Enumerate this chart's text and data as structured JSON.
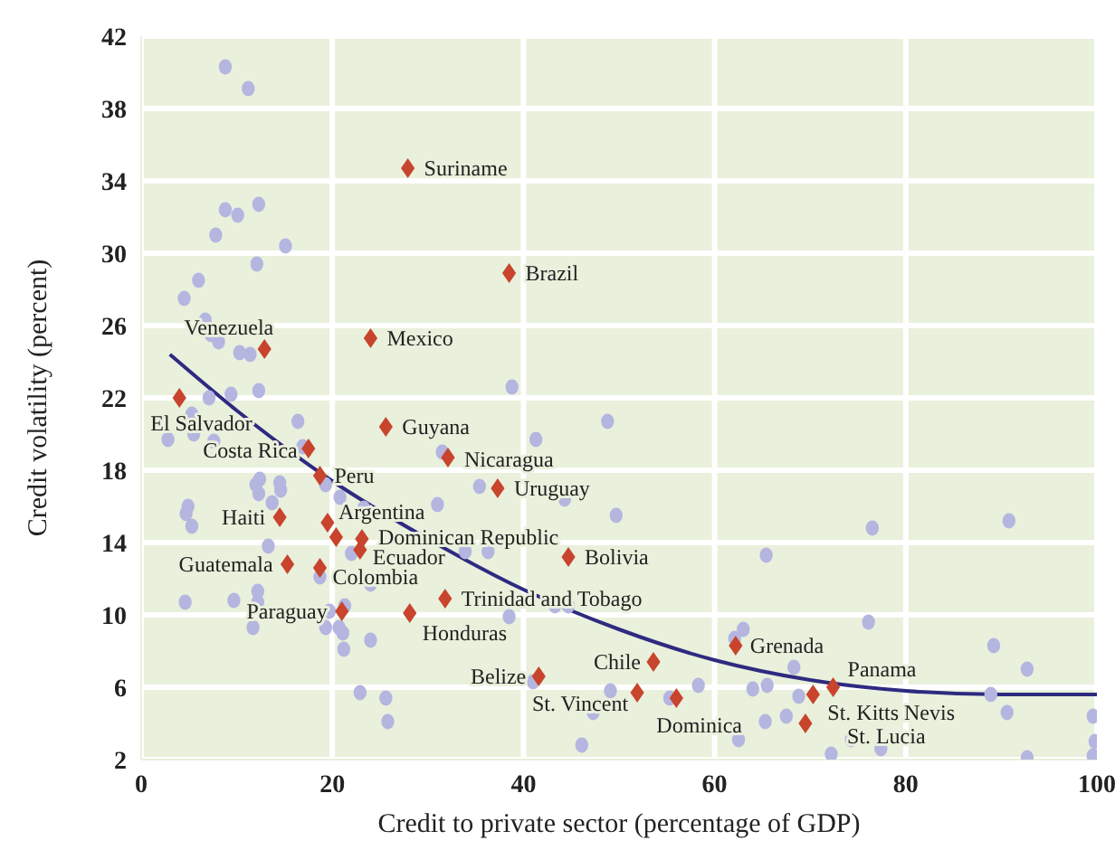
{
  "chart_data": {
    "type": "scatter",
    "xlabel": "Credit to private sector (percentage of GDP)",
    "ylabel": "Credit volatility (percent)",
    "xlim": [
      0,
      100
    ],
    "xticks": [
      0,
      20,
      40,
      60,
      80,
      100
    ],
    "ylim": [
      2,
      42
    ],
    "yticks": [
      2,
      6,
      10,
      14,
      18,
      22,
      26,
      30,
      34,
      38,
      42
    ],
    "grid": true,
    "series": [
      {
        "color": "#b4b6e0",
        "marker": "circle",
        "x": [
          8.8,
          11.2,
          12.3,
          8.8,
          10.1,
          7.8,
          15.1,
          12.1,
          6.0,
          4.5,
          6.7,
          7.3,
          8.1,
          10.3,
          11.4,
          38.8,
          9.4,
          12.3,
          7.1,
          5.3,
          16.4,
          5.5,
          2.8,
          7.6,
          16.9,
          31.5,
          41.3,
          48.8,
          12.4,
          12.0,
          14.5,
          14.6,
          12.3,
          19.3,
          20.8,
          13.7,
          4.9,
          4.7,
          5.3,
          23.3,
          31.0,
          35.4,
          44.3,
          49.7,
          13.3,
          22.0,
          33.9,
          36.3,
          24.0,
          18.7,
          4.6,
          9.7,
          12.2,
          12.2,
          11.7,
          19.7,
          21.3,
          19.3,
          20.7,
          21.1,
          21.2,
          24.0,
          38.5,
          43.3,
          44.7,
          22.9,
          25.6,
          25.8,
          41.0,
          49.1,
          47.3,
          46.1,
          76.5,
          90.8,
          65.4,
          76.1,
          63.0,
          62.1,
          89.2,
          92.7,
          68.3,
          58.3,
          64.0,
          65.5,
          68.8,
          55.3,
          88.9,
          90.6,
          99.6,
          67.5,
          65.3,
          62.5,
          74.3,
          77.4,
          72.2,
          92.7,
          99.8,
          99.6
        ],
        "values": [
          40.3,
          39.1,
          32.7,
          32.4,
          32.1,
          31.0,
          30.4,
          29.4,
          28.5,
          27.5,
          26.3,
          25.5,
          25.1,
          24.5,
          24.4,
          22.6,
          22.2,
          22.4,
          22.0,
          21.1,
          20.7,
          20.0,
          19.7,
          19.6,
          19.3,
          19.0,
          19.7,
          20.7,
          17.5,
          17.2,
          17.3,
          16.9,
          16.7,
          17.2,
          16.5,
          16.2,
          16.0,
          15.6,
          14.9,
          15.9,
          16.1,
          17.1,
          16.4,
          15.5,
          13.8,
          13.4,
          13.5,
          13.5,
          11.7,
          12.1,
          10.7,
          10.8,
          11.3,
          10.7,
          9.3,
          10.2,
          10.5,
          9.3,
          9.3,
          9.0,
          8.1,
          8.6,
          9.9,
          10.5,
          10.5,
          5.7,
          5.4,
          4.1,
          6.3,
          5.8,
          4.6,
          2.8,
          14.8,
          15.2,
          13.3,
          9.6,
          9.2,
          8.7,
          8.3,
          7.0,
          7.1,
          6.1,
          5.9,
          6.1,
          5.5,
          5.4,
          5.6,
          4.6,
          4.4,
          4.4,
          4.1,
          3.1,
          3.1,
          2.6,
          2.3,
          2.1,
          3.0,
          2.2
        ]
      },
      {
        "color": "#c8442c",
        "marker": "diamond",
        "x": [
          27.9,
          38.5,
          24.0,
          12.9,
          4.0,
          25.6,
          17.5,
          32.1,
          18.7,
          37.3,
          19.5,
          14.5,
          23.1,
          22.9,
          15.3,
          18.7,
          44.7,
          31.8,
          21.0,
          28.1,
          41.6,
          53.6,
          62.2,
          51.9,
          56.0,
          72.4,
          70.3,
          69.5,
          20.4
        ],
        "values": [
          34.7,
          28.9,
          25.3,
          24.7,
          22.0,
          20.4,
          19.2,
          18.7,
          17.7,
          17.0,
          15.1,
          15.4,
          14.2,
          13.6,
          12.8,
          12.6,
          13.2,
          10.9,
          10.2,
          10.1,
          6.6,
          7.4,
          8.3,
          5.7,
          5.4,
          6.0,
          5.6,
          4.0,
          14.3
        ]
      },
      {
        "type": "line",
        "color": "#2e2a80",
        "marker": "none",
        "line_style": "solid",
        "x": [
          3,
          10,
          20,
          30,
          40,
          50,
          60,
          70,
          80,
          90,
          100
        ],
        "values": [
          24.4,
          21.3,
          17.4,
          14.2,
          11.4,
          9.2,
          7.5,
          6.4,
          5.8,
          5.6,
          5.6
        ]
      }
    ],
    "annotations": [
      {
        "text": "Suriname",
        "x": 27.9,
        "y": 34.7
      },
      {
        "text": "Brazil",
        "x": 38.5,
        "y": 28.9
      },
      {
        "text": "Mexico",
        "x": 24.0,
        "y": 25.3
      },
      {
        "text": "Venezuela",
        "x": 12.9,
        "y": 24.7
      },
      {
        "text": "El Salvador",
        "x": 4.0,
        "y": 22.0
      },
      {
        "text": "Guyana",
        "x": 25.6,
        "y": 20.4
      },
      {
        "text": "Costa Rica",
        "x": 17.5,
        "y": 19.2
      },
      {
        "text": "Nicaragua",
        "x": 32.1,
        "y": 18.7
      },
      {
        "text": "Peru",
        "x": 18.7,
        "y": 17.7
      },
      {
        "text": "Uruguay",
        "x": 37.3,
        "y": 17.0
      },
      {
        "text": "Argentina",
        "x": 19.5,
        "y": 15.1
      },
      {
        "text": "Haiti",
        "x": 14.5,
        "y": 15.4
      },
      {
        "text": "Dominican Republic",
        "x": 23.1,
        "y": 14.2
      },
      {
        "text": "Ecuador",
        "x": 22.9,
        "y": 13.6
      },
      {
        "text": "Guatemala",
        "x": 15.3,
        "y": 12.8
      },
      {
        "text": "Colombia",
        "x": 18.7,
        "y": 12.6
      },
      {
        "text": "Bolivia",
        "x": 44.7,
        "y": 13.2
      },
      {
        "text": "Trinidad and Tobago",
        "x": 31.8,
        "y": 10.9
      },
      {
        "text": "Paraguay",
        "x": 21.0,
        "y": 10.2
      },
      {
        "text": "Honduras",
        "x": 28.1,
        "y": 10.1
      },
      {
        "text": "Belize",
        "x": 41.6,
        "y": 6.6
      },
      {
        "text": "Chile",
        "x": 53.6,
        "y": 7.4
      },
      {
        "text": "Grenada",
        "x": 62.2,
        "y": 8.3
      },
      {
        "text": "St. Vincent",
        "x": 51.9,
        "y": 5.7
      },
      {
        "text": "Dominica",
        "x": 56.0,
        "y": 5.4
      },
      {
        "text": "Panama",
        "x": 72.4,
        "y": 6.0
      },
      {
        "text": "St. Kitts Nevis",
        "x": 70.3,
        "y": 5.6
      },
      {
        "text": "St. Lucia",
        "x": 69.5,
        "y": 4.0
      }
    ]
  }
}
